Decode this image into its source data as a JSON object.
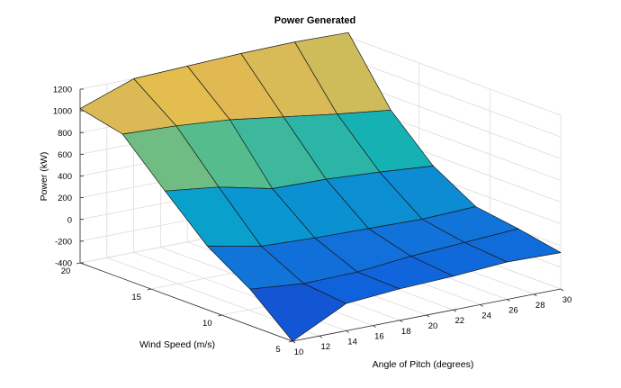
{
  "chart_data": {
    "type": "surface",
    "title": "Power Generated",
    "xlabel": "Angle of Pitch (degrees)",
    "ylabel": "Wind Speed (m/s)",
    "zlabel": "Power (kW)",
    "x": [
      10,
      14,
      18,
      22,
      26,
      30
    ],
    "y": [
      5,
      8,
      11,
      14,
      17,
      20
    ],
    "xlim": [
      10,
      30
    ],
    "ylim": [
      5,
      20
    ],
    "zlim": [
      -400,
      1200
    ],
    "xticks": [
      "10",
      "12",
      "14",
      "16",
      "18",
      "20",
      "22",
      "24",
      "26",
      "28",
      "30"
    ],
    "yticks": [
      "5",
      "10",
      "15",
      "20"
    ],
    "zticks": [
      "-400",
      "-200",
      "0",
      "200",
      "400",
      "600",
      "800",
      "1000",
      "1200"
    ],
    "z": [
      [
        -400,
        -150,
        -110,
        -90,
        -55,
        -65
      ],
      [
        -65,
        -110,
        -100,
        -50,
        -20,
        10
      ],
      [
        185,
        90,
        70,
        60,
        50,
        70
      ],
      [
        550,
        490,
        380,
        370,
        340,
        300
      ],
      [
        930,
        910,
        870,
        800,
        730,
        670
      ],
      [
        1020,
        1200,
        1220,
        1240,
        1250,
        1240
      ]
    ],
    "grid": true,
    "colormap": "parula"
  }
}
